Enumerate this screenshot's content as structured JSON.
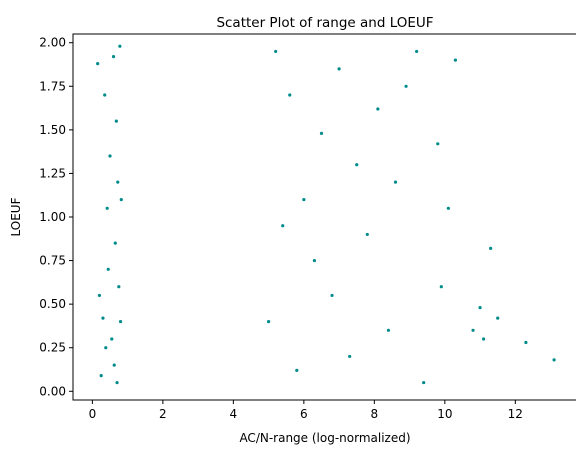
{
  "chart_data": {
    "type": "scatter",
    "title": "Scatter Plot of range and LOEUF",
    "xlabel": "AC/N-range (log-normalized)",
    "ylabel": "LOEUF",
    "xlim": [
      -0.55,
      13.75
    ],
    "ylim": [
      -0.05,
      2.05
    ],
    "xticks": [
      0,
      2,
      4,
      6,
      8,
      10,
      12
    ],
    "xtick_labels": [
      "0",
      "2",
      "4",
      "6",
      "8",
      "10",
      "12"
    ],
    "yticks": [
      0.0,
      0.25,
      0.5,
      0.75,
      1.0,
      1.25,
      1.5,
      1.75,
      2.0
    ],
    "ytick_labels": [
      "0.00",
      "0.25",
      "0.50",
      "0.75",
      "1.00",
      "1.25",
      "1.50",
      "1.75",
      "2.00"
    ],
    "grid": false,
    "point_color": "#008B8B",
    "series": [
      {
        "color": "#008B8B",
        "points": [
          [
            0.15,
            1.88
          ],
          [
            0.2,
            0.55
          ],
          [
            0.25,
            0.09
          ],
          [
            0.3,
            0.42
          ],
          [
            0.35,
            1.7
          ],
          [
            0.38,
            0.25
          ],
          [
            0.42,
            1.05
          ],
          [
            0.45,
            0.7
          ],
          [
            0.5,
            1.35
          ],
          [
            0.55,
            0.3
          ],
          [
            0.6,
            1.92
          ],
          [
            0.62,
            0.15
          ],
          [
            0.65,
            0.85
          ],
          [
            0.68,
            1.55
          ],
          [
            0.7,
            0.05
          ],
          [
            0.72,
            1.2
          ],
          [
            0.75,
            0.6
          ],
          [
            0.78,
            1.98
          ],
          [
            0.8,
            0.4
          ],
          [
            0.82,
            1.1
          ],
          [
            10.3,
            1.9
          ],
          [
            10.8,
            0.35
          ],
          [
            11.0,
            0.48
          ],
          [
            11.1,
            0.3
          ],
          [
            11.3,
            0.82
          ],
          [
            11.5,
            0.42
          ],
          [
            12.3,
            0.28
          ],
          [
            13.1,
            0.18
          ],
          [
            9.4,
            0.05
          ],
          [
            9.8,
            1.42
          ],
          [
            10.1,
            1.05
          ],
          [
            9.9,
            0.6
          ],
          [
            9.2,
            1.95
          ],
          [
            8.9,
            1.75
          ],
          [
            8.6,
            1.2
          ],
          [
            8.4,
            0.35
          ],
          [
            8.1,
            1.62
          ],
          [
            7.8,
            0.9
          ],
          [
            7.5,
            1.3
          ],
          [
            7.3,
            0.2
          ],
          [
            7.0,
            1.85
          ],
          [
            6.8,
            0.55
          ],
          [
            6.5,
            1.48
          ],
          [
            6.3,
            0.75
          ],
          [
            6.0,
            1.1
          ],
          [
            5.8,
            0.12
          ],
          [
            5.6,
            1.7
          ],
          [
            5.4,
            0.95
          ],
          [
            5.2,
            1.95
          ],
          [
            5.0,
            0.4
          ]
        ]
      }
    ]
  }
}
